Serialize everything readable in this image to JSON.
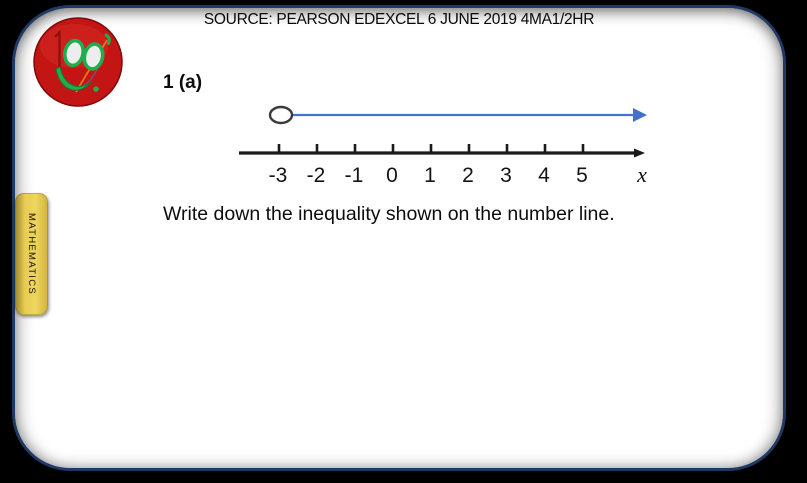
{
  "colors": {
    "panel-border": "#1f3864",
    "ray-blue": "#4472c4",
    "line-black": "#1a1a1a",
    "tab-yellow": "#e8cc55",
    "logo-red": "#c41515",
    "logo-green": "#1fae4e",
    "logo-orange": "#e2761f"
  },
  "header": {
    "source_text": "SOURCE: PEARSON EDEXCEL 6 JUNE 2019 4MA1/2HR"
  },
  "sidebar_tab": {
    "label": "MATHEMATICS"
  },
  "question": {
    "number_label": "1 (a)",
    "prompt": "Write down the inequality shown on the number line."
  },
  "number_line": {
    "type": "number-line",
    "tick_labels": [
      "-3",
      "-2",
      "-1",
      "0",
      "1",
      "2",
      "3",
      "4",
      "5"
    ],
    "axis_variable": "x",
    "axis_range": [
      -3,
      5
    ],
    "ray": {
      "start_value": -3,
      "endpoint_style": "open-circle",
      "direction": "right",
      "color": "#4472c4"
    }
  }
}
